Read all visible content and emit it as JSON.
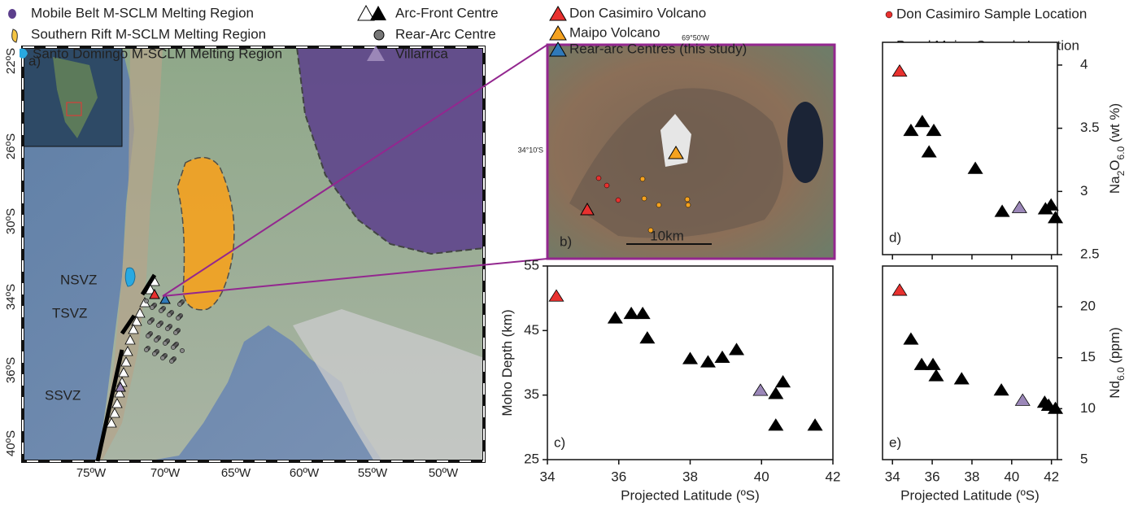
{
  "legend": {
    "items": [
      "Mobile Belt M-SCLM Melting Region",
      "Southern Rift M-SCLM Melting Region",
      "Santo Domingo M-SCLM Melting Region",
      "Arc-Front Centre",
      "Rear-Arc Centre",
      "Villarrica",
      "Don Casimiro Volcano",
      "Maipo Volcano",
      "Rear-arc Centres (this study)",
      "Don Casimiro Sample Location",
      "Basal Maipo Sample Location"
    ]
  },
  "map": {
    "panel_label": "a)",
    "zones": [
      "NSVZ",
      "TSVZ",
      "SSVZ"
    ],
    "lat_labels": [
      "22ºS",
      "26ºS",
      "30ºS",
      "34ºS",
      "36ºS",
      "40ºS"
    ],
    "lon_labels": [
      "75ºW",
      "70ºW",
      "65ºW",
      "60ºW",
      "55ºW",
      "50ºW"
    ]
  },
  "image": {
    "panel_label": "b)",
    "scale_bar": "10km",
    "lon_label": "69°50'W",
    "lat_label": "34°10'S"
  },
  "chart_data": [
    {
      "type": "scatter",
      "panel_label": "c)",
      "xlabel": "Projected Latitude (ºS)",
      "ylabel": [
        {
          "text": "Moho Depth (km)",
          "sub": false
        }
      ],
      "xlim": [
        34,
        42
      ],
      "ylim": [
        25,
        55
      ],
      "xticks": [
        34,
        36,
        38,
        40,
        42
      ],
      "yticks": [
        25,
        35,
        45,
        55
      ],
      "y_axis_side": "left",
      "show_xtick_labels": true,
      "marker": "triangle",
      "series": [
        {
          "color": "#e8312f",
          "x": [
            34.25
          ],
          "values": [
            50.3
          ]
        },
        {
          "color": "#000000",
          "x": [
            35.9,
            36.35,
            36.67,
            36.8,
            38.0,
            38.5,
            38.9,
            39.3,
            40.4,
            40.6,
            40.4,
            41.5
          ],
          "values": [
            46.9,
            47.6,
            47.6,
            43.8,
            40.6,
            40.1,
            40.8,
            42.0,
            35.2,
            37.0,
            30.3,
            30.3
          ]
        },
        {
          "color": "#9b87b8",
          "x": [
            39.97
          ],
          "values": [
            35.7
          ]
        }
      ]
    },
    {
      "type": "scatter",
      "panel_label": "d)",
      "ylabel": [
        {
          "text": "Na",
          "sub": false
        },
        {
          "text": "2",
          "sub": true
        },
        {
          "text": "O",
          "sub": false
        },
        {
          "text": "6.0",
          "sub": true
        },
        {
          "text": " (wt %)",
          "sub": false
        }
      ],
      "xlim": [
        33.5,
        42.3
      ],
      "ylim": [
        2.5,
        4.18
      ],
      "xticks": [
        34,
        36,
        38,
        40,
        42
      ],
      "yticks": [
        2.5,
        3,
        3.5,
        4
      ],
      "y_axis_side": "right",
      "show_xtick_labels": false,
      "marker": "triangle",
      "series": [
        {
          "color": "#e8312f",
          "x": [
            34.36
          ],
          "values": [
            3.95
          ]
        },
        {
          "color": "#000000",
          "x": [
            34.93,
            35.5,
            36.08,
            35.84,
            38.17,
            39.52,
            41.7,
            41.98,
            42.2
          ],
          "values": [
            3.48,
            3.55,
            3.48,
            3.31,
            3.18,
            2.84,
            2.86,
            2.89,
            2.79
          ]
        },
        {
          "color": "#9b87b8",
          "x": [
            40.39
          ],
          "values": [
            2.87
          ]
        }
      ]
    },
    {
      "type": "scatter",
      "panel_label": "e)",
      "xlabel": "Projected Latitude (ºS)",
      "ylabel": [
        {
          "text": "Nd",
          "sub": false
        },
        {
          "text": "6.0",
          "sub": true
        },
        {
          "text": " (ppm)",
          "sub": false
        }
      ],
      "xlim": [
        33.5,
        42.3
      ],
      "ylim": [
        5,
        24
      ],
      "xticks": [
        34,
        36,
        38,
        40,
        42
      ],
      "yticks": [
        5,
        10,
        15,
        20
      ],
      "y_axis_side": "right",
      "show_xtick_labels": true,
      "marker": "triangle",
      "series": [
        {
          "color": "#e8312f",
          "x": [
            34.36
          ],
          "values": [
            21.6
          ]
        },
        {
          "color": "#000000",
          "x": [
            34.93,
            35.47,
            36.04,
            36.2,
            37.48,
            39.48,
            41.66,
            41.86,
            42.2
          ],
          "values": [
            16.8,
            14.3,
            14.3,
            13.2,
            12.9,
            11.8,
            10.6,
            10.3,
            10.0
          ]
        },
        {
          "color": "#9b87b8",
          "x": [
            40.55
          ],
          "values": [
            10.8
          ]
        }
      ]
    }
  ]
}
